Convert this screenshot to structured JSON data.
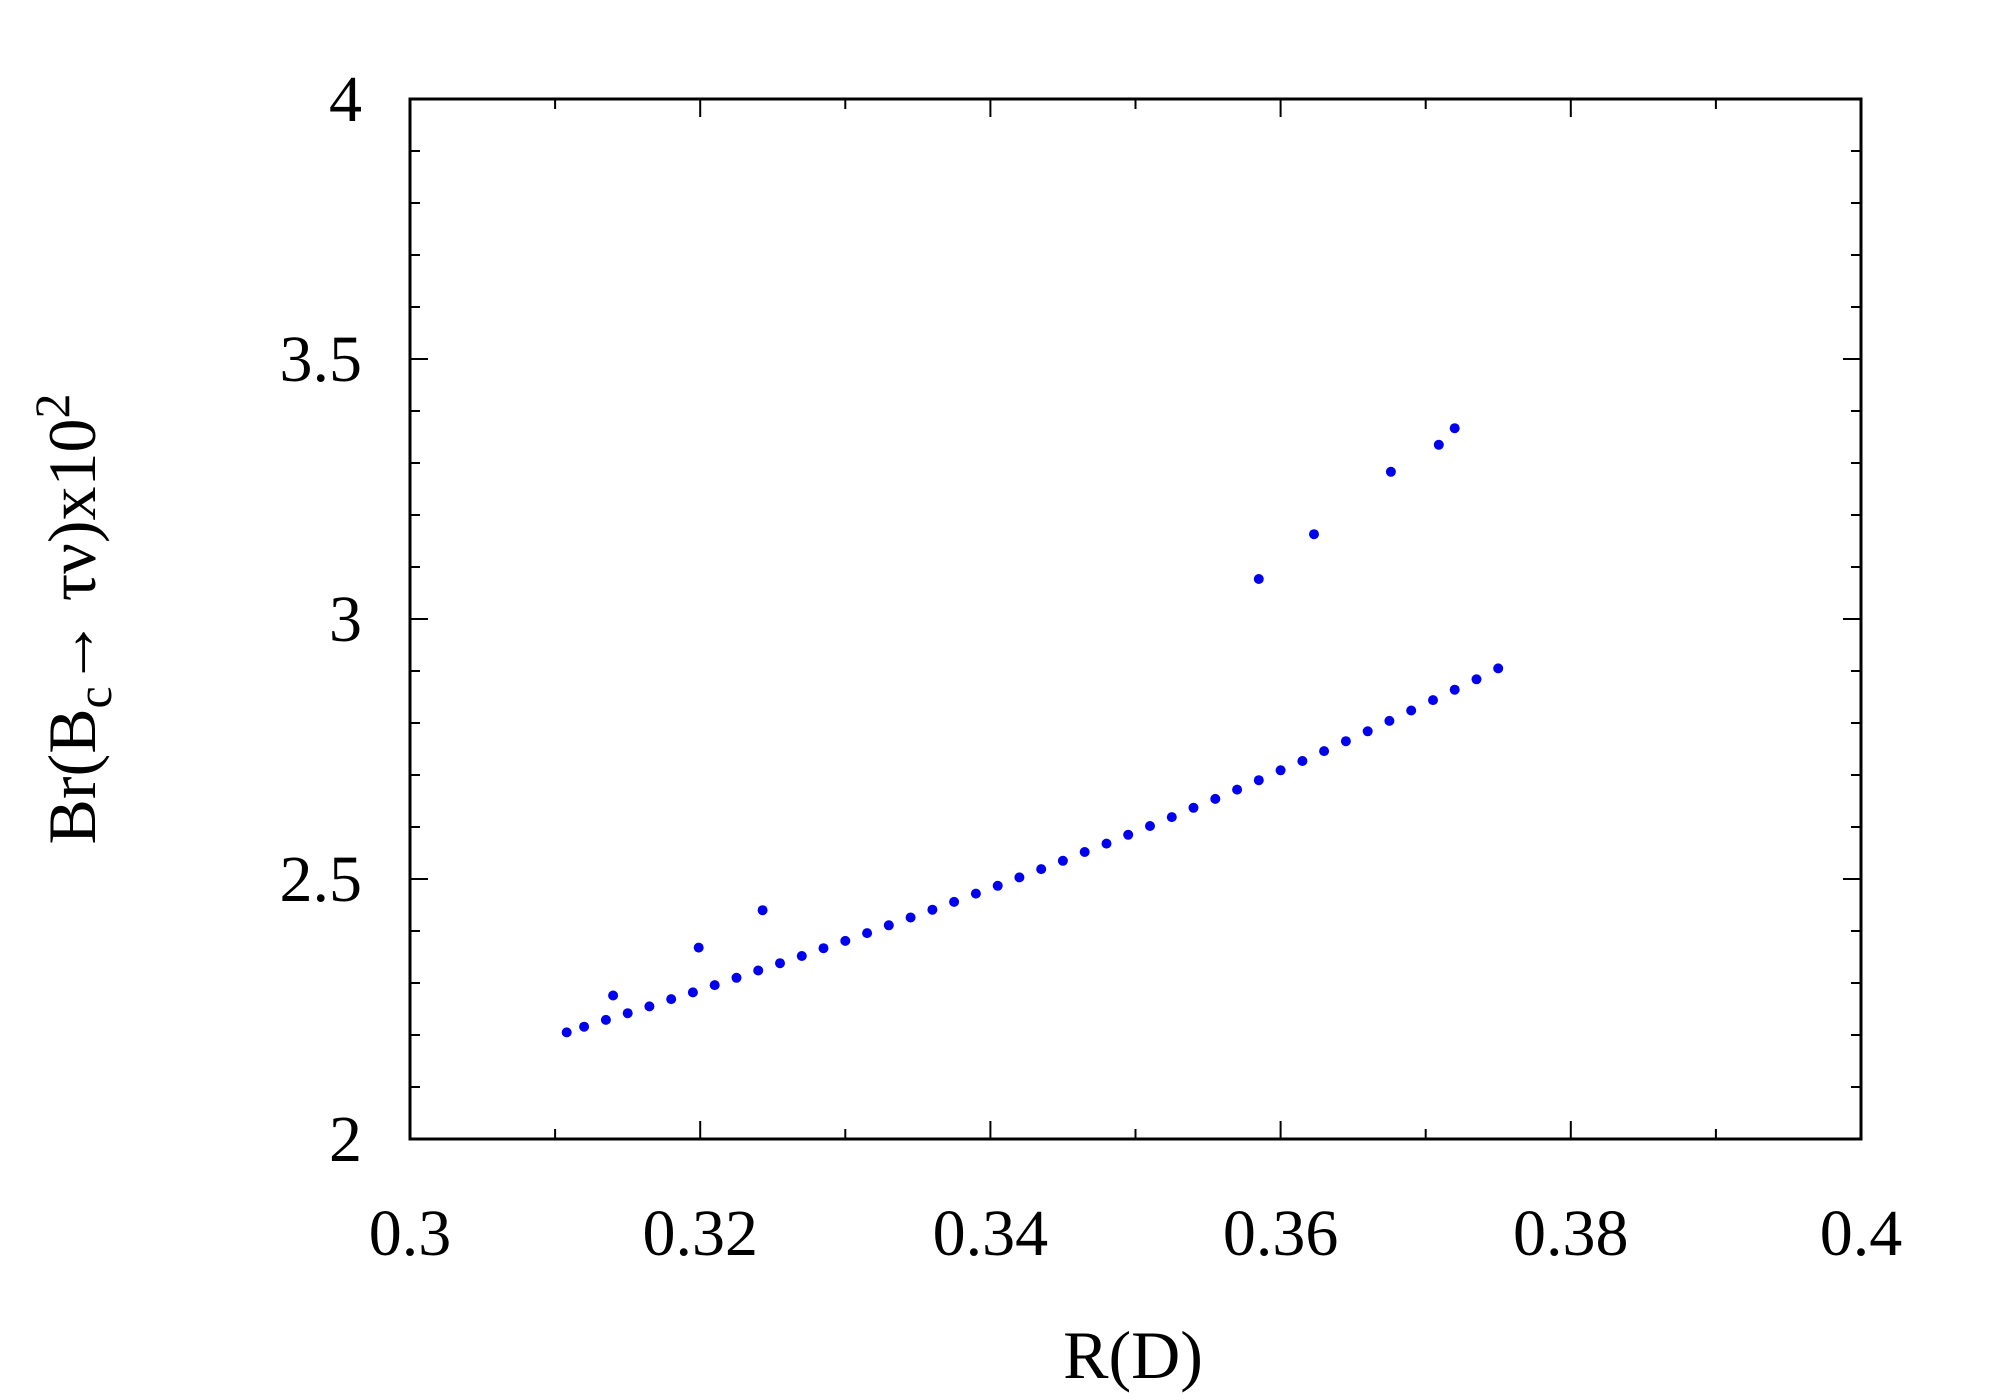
{
  "chart_data": {
    "type": "scatter",
    "title": "",
    "xlabel": "R(D)",
    "ylabel": {
      "prefix": "Br(B",
      "sub": "c",
      "mid": "→ τν)x10",
      "sup": "2"
    },
    "xlim": [
      0.3,
      0.4
    ],
    "ylim": [
      2,
      4
    ],
    "x_ticks": [
      "0.3",
      "0.32",
      "0.34",
      "0.36",
      "0.38",
      "0.4"
    ],
    "x_tick_values": [
      0.3,
      0.32,
      0.34,
      0.36,
      0.38,
      0.4
    ],
    "y_ticks": [
      "2",
      "2.5",
      "3",
      "3.5",
      "4"
    ],
    "y_tick_values": [
      2,
      2.5,
      3,
      3.5,
      4
    ],
    "grid": false,
    "marker_color": "#0000ee",
    "series": [
      {
        "values": [
          [
            0.3108,
            2.205
          ],
          [
            0.312,
            2.216
          ],
          [
            0.3135,
            2.229
          ],
          [
            0.315,
            2.242
          ],
          [
            0.3165,
            2.255
          ],
          [
            0.318,
            2.269
          ],
          [
            0.3195,
            2.282
          ],
          [
            0.321,
            2.296
          ],
          [
            0.3225,
            2.31
          ],
          [
            0.324,
            2.324
          ],
          [
            0.3255,
            2.338
          ],
          [
            0.327,
            2.352
          ],
          [
            0.3285,
            2.367
          ],
          [
            0.33,
            2.381
          ],
          [
            0.3315,
            2.396
          ],
          [
            0.333,
            2.411
          ],
          [
            0.3345,
            2.426
          ],
          [
            0.336,
            2.441
          ],
          [
            0.3375,
            2.456
          ],
          [
            0.339,
            2.472
          ],
          [
            0.3405,
            2.487
          ],
          [
            0.342,
            2.503
          ],
          [
            0.3435,
            2.519
          ],
          [
            0.345,
            2.535
          ],
          [
            0.3465,
            2.552
          ],
          [
            0.348,
            2.568
          ],
          [
            0.3495,
            2.585
          ],
          [
            0.351,
            2.602
          ],
          [
            0.3525,
            2.619
          ],
          [
            0.354,
            2.637
          ],
          [
            0.3555,
            2.654
          ],
          [
            0.357,
            2.672
          ],
          [
            0.3585,
            2.69
          ],
          [
            0.36,
            2.709
          ],
          [
            0.3615,
            2.727
          ],
          [
            0.363,
            2.746
          ],
          [
            0.3645,
            2.765
          ],
          [
            0.366,
            2.784
          ],
          [
            0.3675,
            2.804
          ],
          [
            0.369,
            2.824
          ],
          [
            0.3705,
            2.844
          ],
          [
            0.372,
            2.864
          ],
          [
            0.3735,
            2.884
          ],
          [
            0.375,
            2.905
          ],
          [
            0.314,
            2.276
          ],
          [
            0.3199,
            2.368
          ],
          [
            0.3243,
            2.44
          ],
          [
            0.3585,
            3.077
          ],
          [
            0.3623,
            3.163
          ],
          [
            0.3676,
            3.283
          ],
          [
            0.372,
            3.367
          ],
          [
            0.3709,
            3.335
          ]
        ]
      }
    ]
  }
}
